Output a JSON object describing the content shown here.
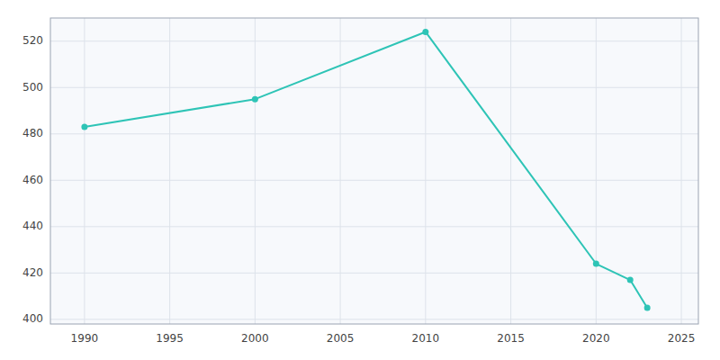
{
  "chart_data": {
    "type": "line",
    "x": [
      1990,
      2000,
      2010,
      2020,
      2022,
      2023
    ],
    "values": [
      483,
      495,
      524,
      424,
      417,
      405
    ],
    "color": "#2ec4b6",
    "marker": "circle",
    "xlim": [
      1988,
      2026
    ],
    "ylim": [
      398,
      530
    ],
    "xticks": [
      1990,
      1995,
      2000,
      2005,
      2010,
      2015,
      2020,
      2025
    ],
    "yticks": [
      400,
      420,
      440,
      460,
      480,
      500,
      520
    ],
    "grid": true
  }
}
